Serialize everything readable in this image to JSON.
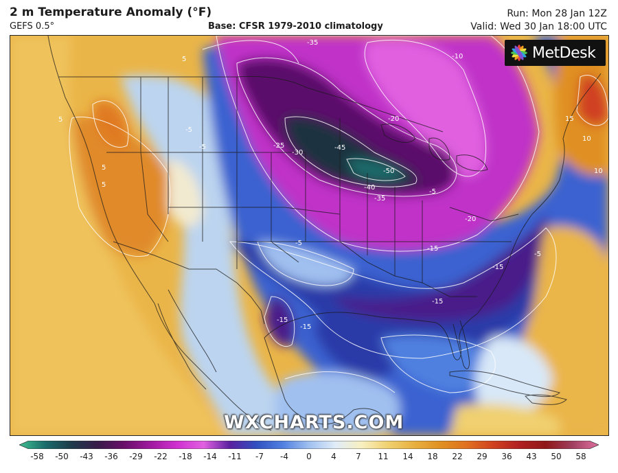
{
  "header": {
    "title": "2 m Temperature Anomaly (°F)",
    "model": "GEFS 0.5°",
    "base": "Base: CFSR 1979-2010 climatology",
    "run": "Run: Mon 28 Jan 12Z",
    "valid": "Valid: Wed 30 Jan 18:00 UTC"
  },
  "logo": {
    "text": "MetDesk",
    "icon": "metdesk-star-icon"
  },
  "watermark": "WXCHARTS.COM",
  "contour_labels": [
    "-35",
    "-10",
    "5",
    "5",
    "5",
    "5",
    "-5",
    "-5",
    "-20",
    "-25",
    "-30",
    "-45",
    "-50",
    "-40",
    "-35",
    "-20",
    "-15",
    "-15",
    "-15",
    "-15",
    "-15",
    "-5",
    "-5",
    "15",
    "10",
    "10",
    "-5"
  ],
  "colorbar": {
    "ticks": [
      "-58",
      "-50",
      "-43",
      "-36",
      "-29",
      "-22",
      "-18",
      "-14",
      "-11",
      "-7",
      "-4",
      "0",
      "4",
      "7",
      "11",
      "14",
      "18",
      "22",
      "29",
      "36",
      "43",
      "50",
      "58"
    ],
    "colors": [
      "#3fbf8f",
      "#1a6b6b",
      "#1e3a4a",
      "#3a1a4a",
      "#6a0f6a",
      "#a01aa0",
      "#d030d0",
      "#e060e0",
      "#5a20a0",
      "#3050c0",
      "#5080e0",
      "#a0c0f0",
      "#e0ecf8",
      "#f8f0c0",
      "#f0d070",
      "#e8b040",
      "#e09020",
      "#e07020",
      "#d04020",
      "#b02020",
      "#901818",
      "#a04060",
      "#e070a0"
    ]
  }
}
